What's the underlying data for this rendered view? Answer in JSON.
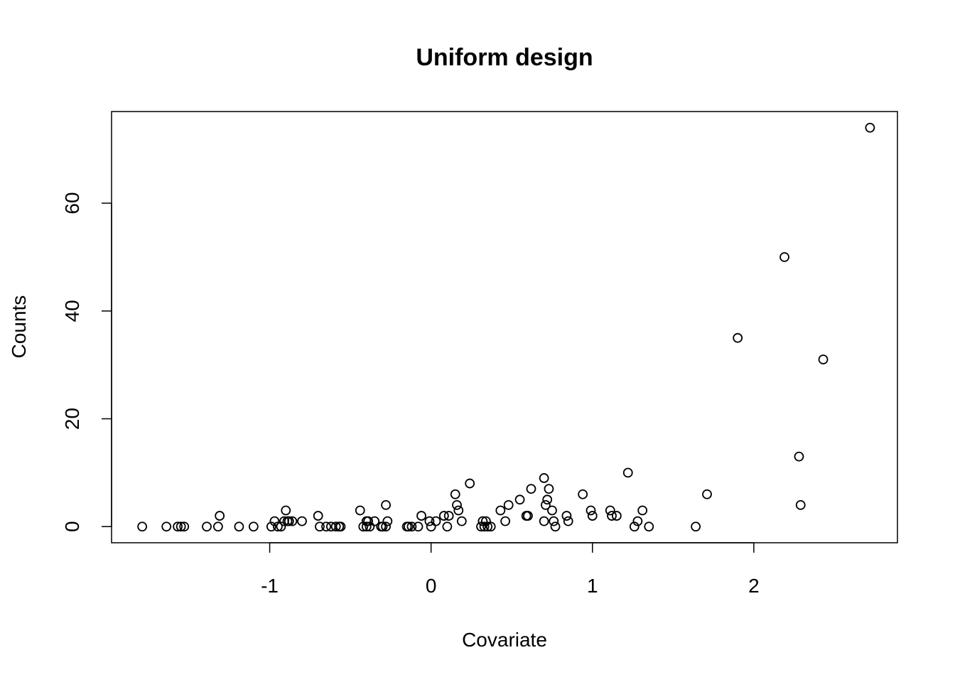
{
  "chart_data": {
    "type": "scatter",
    "title": "Uniform design",
    "xlabel": "Covariate",
    "ylabel": "Counts",
    "xlim": [
      -1.98,
      2.89
    ],
    "ylim": [
      -3,
      77
    ],
    "xticks": [
      -1,
      0,
      1,
      2
    ],
    "xtick_labels": [
      "-1",
      "0",
      "1",
      "2"
    ],
    "yticks": [
      0,
      20,
      40,
      60
    ],
    "ytick_labels": [
      "0",
      "20",
      "40",
      "60"
    ],
    "grid": false,
    "points": [
      {
        "x": -1.79,
        "y": 0
      },
      {
        "x": -1.64,
        "y": 0
      },
      {
        "x": -1.57,
        "y": 0
      },
      {
        "x": -1.55,
        "y": 0
      },
      {
        "x": -1.53,
        "y": 0
      },
      {
        "x": -1.39,
        "y": 0
      },
      {
        "x": -1.32,
        "y": 0
      },
      {
        "x": -1.31,
        "y": 2
      },
      {
        "x": -1.19,
        "y": 0
      },
      {
        "x": -1.1,
        "y": 0
      },
      {
        "x": -0.99,
        "y": 0
      },
      {
        "x": -0.97,
        "y": 1
      },
      {
        "x": -0.95,
        "y": 0
      },
      {
        "x": -0.93,
        "y": 0
      },
      {
        "x": -0.91,
        "y": 1
      },
      {
        "x": -0.9,
        "y": 3
      },
      {
        "x": -0.89,
        "y": 1
      },
      {
        "x": -0.88,
        "y": 1
      },
      {
        "x": -0.86,
        "y": 1
      },
      {
        "x": -0.8,
        "y": 1
      },
      {
        "x": -0.7,
        "y": 2
      },
      {
        "x": -0.69,
        "y": 0
      },
      {
        "x": -0.65,
        "y": 0
      },
      {
        "x": -0.62,
        "y": 0
      },
      {
        "x": -0.59,
        "y": 0
      },
      {
        "x": -0.57,
        "y": 0
      },
      {
        "x": -0.56,
        "y": 0
      },
      {
        "x": -0.44,
        "y": 3
      },
      {
        "x": -0.42,
        "y": 0
      },
      {
        "x": -0.4,
        "y": 1
      },
      {
        "x": -0.4,
        "y": 0
      },
      {
        "x": -0.39,
        "y": 1
      },
      {
        "x": -0.38,
        "y": 0
      },
      {
        "x": -0.35,
        "y": 1
      },
      {
        "x": -0.31,
        "y": 0
      },
      {
        "x": -0.3,
        "y": 0
      },
      {
        "x": -0.28,
        "y": 0
      },
      {
        "x": -0.28,
        "y": 4
      },
      {
        "x": -0.27,
        "y": 1
      },
      {
        "x": -0.15,
        "y": 0
      },
      {
        "x": -0.14,
        "y": 0
      },
      {
        "x": -0.12,
        "y": 0
      },
      {
        "x": -0.08,
        "y": 0
      },
      {
        "x": -0.06,
        "y": 2
      },
      {
        "x": -0.01,
        "y": 1
      },
      {
        "x": 0.0,
        "y": 0
      },
      {
        "x": 0.03,
        "y": 1
      },
      {
        "x": 0.08,
        "y": 2
      },
      {
        "x": 0.1,
        "y": 0
      },
      {
        "x": 0.11,
        "y": 2
      },
      {
        "x": 0.15,
        "y": 6
      },
      {
        "x": 0.16,
        "y": 4
      },
      {
        "x": 0.17,
        "y": 3
      },
      {
        "x": 0.19,
        "y": 1
      },
      {
        "x": 0.24,
        "y": 8
      },
      {
        "x": 0.31,
        "y": 0
      },
      {
        "x": 0.32,
        "y": 1
      },
      {
        "x": 0.33,
        "y": 0
      },
      {
        "x": 0.34,
        "y": 1
      },
      {
        "x": 0.35,
        "y": 0
      },
      {
        "x": 0.37,
        "y": 0
      },
      {
        "x": 0.43,
        "y": 3
      },
      {
        "x": 0.46,
        "y": 1
      },
      {
        "x": 0.48,
        "y": 4
      },
      {
        "x": 0.55,
        "y": 5
      },
      {
        "x": 0.59,
        "y": 2
      },
      {
        "x": 0.6,
        "y": 2
      },
      {
        "x": 0.62,
        "y": 7
      },
      {
        "x": 0.7,
        "y": 9
      },
      {
        "x": 0.7,
        "y": 1
      },
      {
        "x": 0.71,
        "y": 4
      },
      {
        "x": 0.72,
        "y": 5
      },
      {
        "x": 0.73,
        "y": 7
      },
      {
        "x": 0.75,
        "y": 3
      },
      {
        "x": 0.76,
        "y": 1
      },
      {
        "x": 0.77,
        "y": 0
      },
      {
        "x": 0.84,
        "y": 2
      },
      {
        "x": 0.85,
        "y": 1
      },
      {
        "x": 0.94,
        "y": 6
      },
      {
        "x": 0.99,
        "y": 3
      },
      {
        "x": 1.0,
        "y": 2
      },
      {
        "x": 1.11,
        "y": 3
      },
      {
        "x": 1.12,
        "y": 2
      },
      {
        "x": 1.15,
        "y": 2
      },
      {
        "x": 1.22,
        "y": 10
      },
      {
        "x": 1.26,
        "y": 0
      },
      {
        "x": 1.28,
        "y": 1
      },
      {
        "x": 1.31,
        "y": 3
      },
      {
        "x": 1.35,
        "y": 0
      },
      {
        "x": 1.64,
        "y": 0
      },
      {
        "x": 1.71,
        "y": 6
      },
      {
        "x": 1.9,
        "y": 35
      },
      {
        "x": 2.19,
        "y": 50
      },
      {
        "x": 2.28,
        "y": 13
      },
      {
        "x": 2.29,
        "y": 4
      },
      {
        "x": 2.43,
        "y": 31
      },
      {
        "x": 2.72,
        "y": 74
      }
    ]
  }
}
